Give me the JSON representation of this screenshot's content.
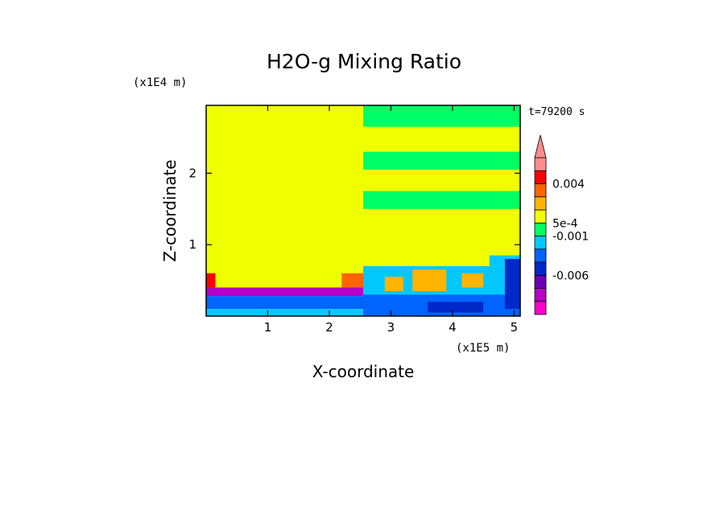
{
  "chart_data": {
    "type": "heatmap",
    "title": "H2O-g Mixing Ratio",
    "xlabel": "X-coordinate",
    "ylabel": "Z-coordinate",
    "x_scale_label": "(x1E5 m)",
    "y_scale_label": "(x1E4 m)",
    "time_label": "t=79200 s",
    "xlim": [
      0,
      5.1
    ],
    "ylim": [
      0,
      2.95
    ],
    "x_ticks": [
      {
        "value": 1,
        "label": "1"
      },
      {
        "value": 2,
        "label": "2"
      },
      {
        "value": 3,
        "label": "3"
      },
      {
        "value": 4,
        "label": "4"
      },
      {
        "value": 5,
        "label": "5"
      }
    ],
    "y_ticks": [
      {
        "value": 1,
        "label": "1"
      },
      {
        "value": 2,
        "label": "2"
      }
    ],
    "colorbar": {
      "colors": [
        "#ff00c8",
        "#b400c8",
        "#6e00b4",
        "#0028c8",
        "#0064ff",
        "#00c8ff",
        "#00ff64",
        "#f0ff00",
        "#ffb400",
        "#ff6400",
        "#ff0000",
        "#ff8c8c"
      ],
      "labels": [
        {
          "text": "-0.006",
          "level_index": 2
        },
        {
          "text": "-0.001",
          "level_index": 5
        },
        {
          "text": "5e-4",
          "level_index": 6
        },
        {
          "text": "0.004",
          "level_index": 9
        }
      ],
      "extend_top": true
    },
    "field_regions": [
      {
        "x": [
          0,
          2.55
        ],
        "y": [
          0.4,
          2.95
        ],
        "color": "#f0ff00"
      },
      {
        "x": [
          2.55,
          5.1
        ],
        "y": [
          1.45,
          2.95
        ],
        "color": "#f0ff00"
      },
      {
        "x": [
          2.55,
          5.1
        ],
        "y": [
          2.65,
          2.95
        ],
        "color": "#00ff64"
      },
      {
        "x": [
          2.55,
          5.1
        ],
        "y": [
          2.05,
          2.3
        ],
        "color": "#00ff64"
      },
      {
        "x": [
          2.55,
          5.1
        ],
        "y": [
          1.5,
          1.75
        ],
        "color": "#00ff64"
      },
      {
        "x": [
          2.55,
          5.1
        ],
        "y": [
          0.7,
          1.45
        ],
        "color": "#f0ff00"
      },
      {
        "x": [
          2.55,
          5.1
        ],
        "y": [
          0,
          0.7
        ],
        "color": "#00c8ff"
      },
      {
        "x": [
          2.55,
          5.1
        ],
        "y": [
          0,
          0.3
        ],
        "color": "#0064ff"
      },
      {
        "x": [
          0,
          2.55
        ],
        "y": [
          0.28,
          0.4
        ],
        "color": "#b400c8"
      },
      {
        "x": [
          0,
          2.55
        ],
        "y": [
          0.1,
          0.28
        ],
        "color": "#0064ff"
      },
      {
        "x": [
          0,
          2.55
        ],
        "y": [
          0,
          0.1
        ],
        "color": "#00c8ff"
      },
      {
        "x": [
          0,
          0.15
        ],
        "y": [
          0.4,
          0.6
        ],
        "color": "#ff0000"
      },
      {
        "x": [
          2.2,
          2.55
        ],
        "y": [
          0.4,
          0.6
        ],
        "color": "#ff6400"
      },
      {
        "x": [
          3.35,
          3.9
        ],
        "y": [
          0.35,
          0.65
        ],
        "color": "#ffb400"
      },
      {
        "x": [
          4.15,
          4.5
        ],
        "y": [
          0.4,
          0.6
        ],
        "color": "#ffb400"
      },
      {
        "x": [
          2.9,
          3.2
        ],
        "y": [
          0.35,
          0.55
        ],
        "color": "#ffb400"
      },
      {
        "x": [
          4.6,
          5.1
        ],
        "y": [
          0.7,
          0.85
        ],
        "color": "#00c8ff"
      },
      {
        "x": [
          4.85,
          5.1
        ],
        "y": [
          0.1,
          0.8
        ],
        "color": "#0028c8"
      },
      {
        "x": [
          3.6,
          4.5
        ],
        "y": [
          0.05,
          0.2
        ],
        "color": "#0028c8"
      }
    ]
  }
}
